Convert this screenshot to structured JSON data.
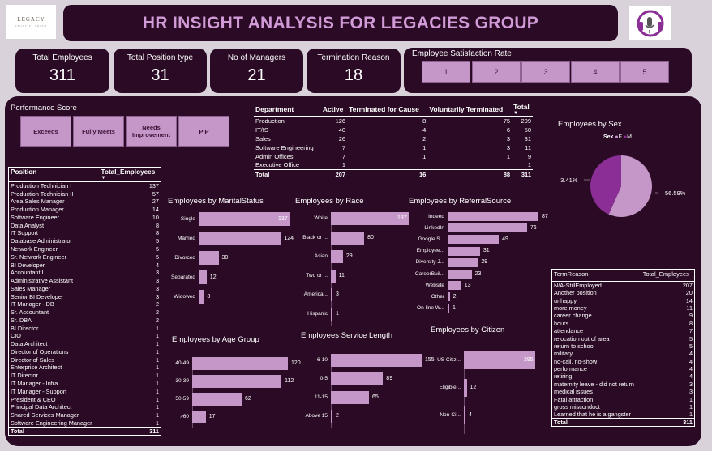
{
  "logo": {
    "text": "LEGACY",
    "sub": "LEGACIES GROUP"
  },
  "title": "HR INSIGHT ANALYSIS FOR LEGACIES GROUP",
  "kpis": [
    {
      "label": "Total Employees",
      "value": "311"
    },
    {
      "label": "Total Position type",
      "value": "31"
    },
    {
      "label": "No of Managers",
      "value": "21"
    },
    {
      "label": "Termination Reason",
      "value": "18"
    }
  ],
  "satisfaction": {
    "label": "Employee Satisfaction Rate",
    "options": [
      "1",
      "2",
      "3",
      "4",
      "5"
    ]
  },
  "performance": {
    "label": "Performance Score",
    "options": [
      "Exceeds",
      "Fully Meets",
      "Needs Improvement",
      "PIP"
    ]
  },
  "department_table": {
    "headers": [
      "Department",
      "Active",
      "Terminated for Cause",
      "Voluntarily Terminated",
      "Total"
    ],
    "rows": [
      [
        "Production",
        "126",
        "8",
        "75",
        "209"
      ],
      [
        "IT/IS",
        "40",
        "4",
        "6",
        "50"
      ],
      [
        "Sales",
        "26",
        "2",
        "3",
        "31"
      ],
      [
        "Software Engineering",
        "7",
        "1",
        "3",
        "11"
      ],
      [
        "Admin Offices",
        "7",
        "1",
        "1",
        "9"
      ],
      [
        "Executive Office",
        "1",
        "",
        "",
        "1"
      ]
    ],
    "total": [
      "Total",
      "207",
      "16",
      "88",
      "311"
    ]
  },
  "position_table": {
    "headers": [
      "Position",
      "Total_Employees"
    ],
    "rows": [
      [
        "Production Technician I",
        "137"
      ],
      [
        "Production Technician II",
        "57"
      ],
      [
        "Area Sales Manager",
        "27"
      ],
      [
        "Production Manager",
        "14"
      ],
      [
        "Software Engineer",
        "10"
      ],
      [
        "Data Analyst",
        "8"
      ],
      [
        "IT Support",
        "8"
      ],
      [
        "Database Administrator",
        "5"
      ],
      [
        "Network Engineer",
        "5"
      ],
      [
        "Sr. Network Engineer",
        "5"
      ],
      [
        "BI Developer",
        "4"
      ],
      [
        "Accountant I",
        "3"
      ],
      [
        "Administrative Assistant",
        "3"
      ],
      [
        "Sales Manager",
        "3"
      ],
      [
        "Senior BI Developer",
        "3"
      ],
      [
        "IT Manager - DB",
        "2"
      ],
      [
        "Sr. Accountant",
        "2"
      ],
      [
        "Sr. DBA",
        "2"
      ],
      [
        "BI Director",
        "1"
      ],
      [
        "CIO",
        "1"
      ],
      [
        "Data Architect",
        "1"
      ],
      [
        "Director of Operations",
        "1"
      ],
      [
        "Director of Sales",
        "1"
      ],
      [
        "Enterprise Architect",
        "1"
      ],
      [
        "IT Director",
        "1"
      ],
      [
        "IT Manager - Infra",
        "1"
      ],
      [
        "IT Manager - Support",
        "1"
      ],
      [
        "President & CEO",
        "1"
      ],
      [
        "Principal Data Architect",
        "1"
      ],
      [
        "Shared Services Manager",
        "1"
      ],
      [
        "Software Engineering Manager",
        "1"
      ]
    ],
    "total": [
      "Total",
      "311"
    ]
  },
  "term_table": {
    "headers": [
      "TermReason",
      "Total_Employees"
    ],
    "rows": [
      [
        "N/A-StillEmployed",
        "207"
      ],
      [
        "Another position",
        "20"
      ],
      [
        "unhappy",
        "14"
      ],
      [
        "more money",
        "11"
      ],
      [
        "career change",
        "9"
      ],
      [
        "hours",
        "8"
      ],
      [
        "attendance",
        "7"
      ],
      [
        "relocation out of area",
        "5"
      ],
      [
        "return to school",
        "5"
      ],
      [
        "military",
        "4"
      ],
      [
        "no-call, no-show",
        "4"
      ],
      [
        "performance",
        "4"
      ],
      [
        "retiring",
        "4"
      ],
      [
        "maternity leave - did not return",
        "3"
      ],
      [
        "medical issues",
        "3"
      ],
      [
        "Fatal attraction",
        "1"
      ],
      [
        "gross misconduct",
        "1"
      ],
      [
        "Learned that he is a gangster",
        "1"
      ]
    ],
    "total": [
      "Total",
      "311"
    ]
  },
  "chart_data": [
    {
      "type": "pie",
      "title": "Employees by Sex",
      "legend_title": "Sex",
      "categories": [
        "F",
        "M"
      ],
      "labels": [
        "56.59%",
        "43.41%"
      ],
      "values": [
        56.59,
        43.41
      ],
      "colors": [
        "#c597c9",
        "#8b2f96"
      ],
      "legend": "top-left"
    },
    {
      "type": "bar",
      "orientation": "horizontal",
      "title": "Employees by MaritalStatus",
      "categories": [
        "Single",
        "Married",
        "Divorced",
        "Separated",
        "Widowed"
      ],
      "values": [
        137,
        124,
        30,
        12,
        8
      ]
    },
    {
      "type": "bar",
      "orientation": "horizontal",
      "title": "Employees by Race",
      "categories": [
        "White",
        "Black or ...",
        "Asian",
        "Two or ...",
        "America...",
        "Hispanic"
      ],
      "values": [
        187,
        80,
        29,
        11,
        3,
        1
      ]
    },
    {
      "type": "bar",
      "orientation": "horizontal",
      "title": "Employees by ReferralSource",
      "categories": [
        "Indeed",
        "LinkedIn",
        "Google S...",
        "Employee...",
        "Diversity J...",
        "CareerBuil...",
        "Website",
        "Other",
        "On-line W..."
      ],
      "values": [
        87,
        76,
        49,
        31,
        29,
        23,
        13,
        2,
        1
      ]
    },
    {
      "type": "bar",
      "orientation": "horizontal",
      "title": "Employees by Age Group",
      "categories": [
        "40-49",
        "30-39",
        "50-59",
        ">60"
      ],
      "values": [
        120,
        112,
        62,
        17
      ]
    },
    {
      "type": "bar",
      "orientation": "horizontal",
      "title": "Employees Service Length",
      "categories": [
        "6-10",
        "0-5",
        "11-15",
        "Above 15"
      ],
      "values": [
        155,
        89,
        65,
        2
      ]
    },
    {
      "type": "bar",
      "orientation": "horizontal",
      "title": "Employees by Citizen",
      "categories": [
        "US Citiz...",
        "Eligible...",
        "Non-Ci..."
      ],
      "values": [
        295,
        12,
        4
      ]
    }
  ]
}
